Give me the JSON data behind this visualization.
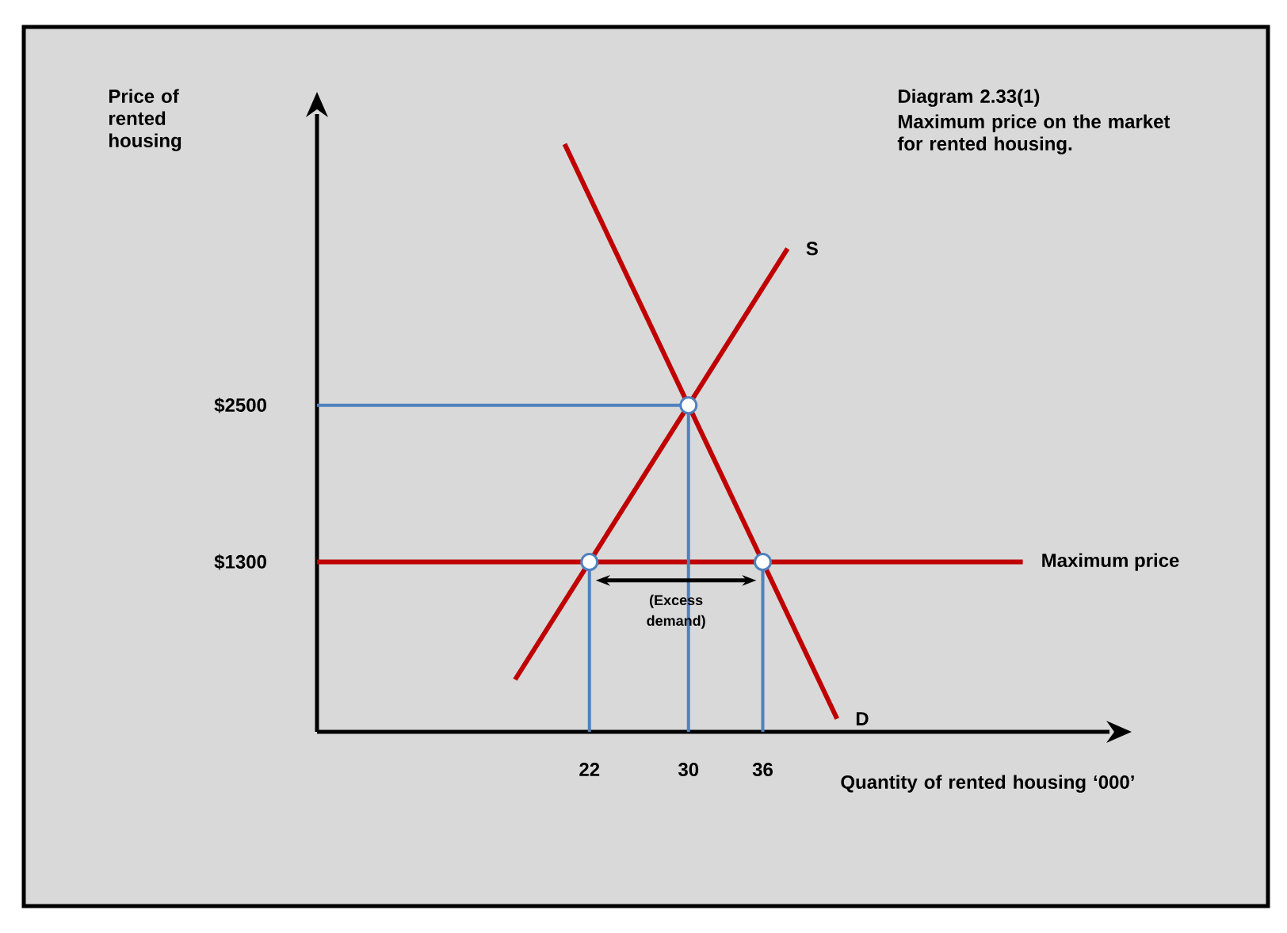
{
  "chart_data": {
    "type": "line",
    "title": "Diagram 2.33(1)",
    "subtitle": "Maximum price on the market for rented housing.",
    "xlabel": "Quantity of rented housing ‘000’",
    "ylabel": "Price of rented housing",
    "xlim": [
      0,
      64
    ],
    "ylim": [
      0,
      4730
    ],
    "xticks": [
      22,
      30,
      36
    ],
    "yticks": [
      {
        "value": 1300,
        "label": "$1300"
      },
      {
        "value": 2500,
        "label": "$2500"
      }
    ],
    "series": [
      {
        "name": "S",
        "color": "#c00000",
        "x": [
          16,
          38
        ],
        "values": [
          400,
          3700
        ]
      },
      {
        "name": "D",
        "color": "#c00000",
        "x": [
          20,
          42
        ],
        "values": [
          4500,
          100
        ]
      },
      {
        "name": "Maximum price",
        "color": "#c00000",
        "x": [
          0,
          57
        ],
        "values": [
          1300,
          1300
        ]
      },
      {
        "color": "#4f81bd",
        "x": [
          0,
          30
        ],
        "values": [
          2500,
          2500
        ]
      },
      {
        "color": "#4f81bd",
        "x": [
          30,
          30
        ],
        "values": [
          0,
          2500
        ]
      },
      {
        "color": "#4f81bd",
        "x": [
          22,
          22
        ],
        "values": [
          0,
          1300
        ]
      },
      {
        "color": "#4f81bd",
        "x": [
          36,
          36
        ],
        "values": [
          0,
          1300
        ]
      },
      {
        "type": "scatter",
        "color": "#ffffff",
        "x": [
          22,
          30,
          36
        ],
        "values": [
          1300,
          2500,
          1300
        ]
      }
    ],
    "annotations": [
      "(Excess demand)"
    ]
  }
}
